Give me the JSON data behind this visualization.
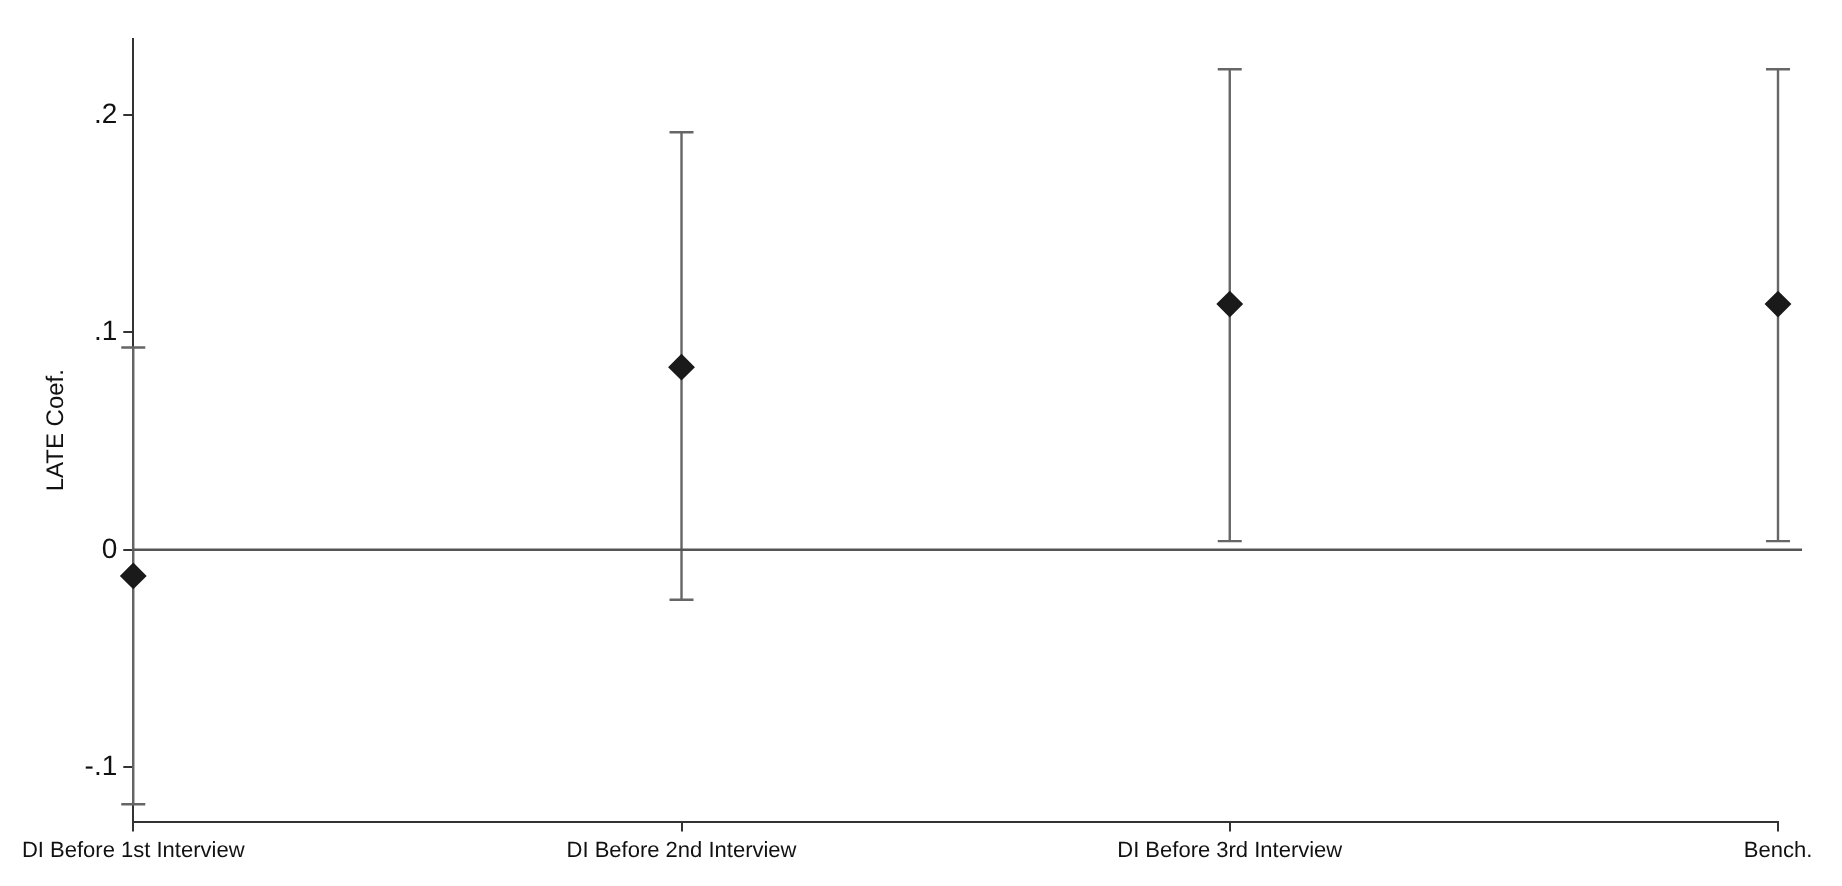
{
  "chart_data": {
    "type": "scatter",
    "ylabel": "LATE Coef.",
    "categories": [
      "DI Before 1st Interview",
      "DI Before 2nd Interview",
      "DI Before 3rd Interview",
      "Bench."
    ],
    "values": [
      -0.012,
      0.084,
      0.113,
      0.113
    ],
    "errors": [
      [
        -0.117,
        0.093
      ],
      [
        -0.023,
        0.192
      ],
      [
        0.004,
        0.221
      ],
      [
        0.004,
        0.221
      ]
    ],
    "color": "#1a1a1a",
    "marker": "diamond",
    "grid": false,
    "legend": false,
    "ylim": [
      -0.125,
      0.235
    ],
    "yticks": [
      {
        "value": -0.1,
        "label": "-.1"
      },
      {
        "value": 0,
        "label": "0"
      },
      {
        "value": 0.1,
        "label": ".1"
      },
      {
        "value": 0.2,
        "label": ".2"
      }
    ],
    "ref_lines": [
      {
        "axis": "y",
        "value": 0,
        "color": "#555555"
      }
    ]
  }
}
